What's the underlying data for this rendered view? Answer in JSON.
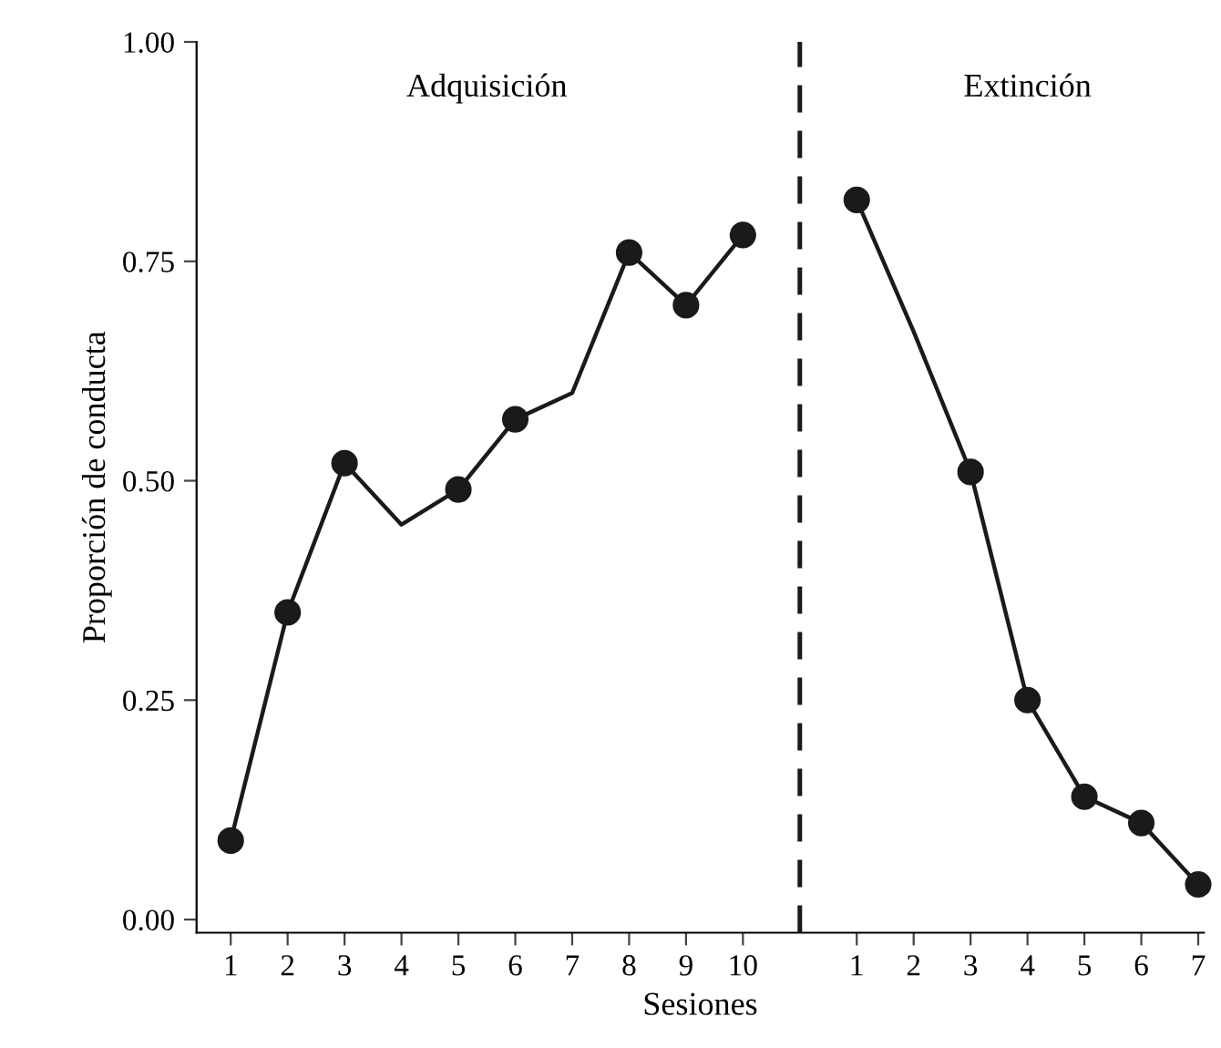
{
  "chart_data": {
    "type": "line",
    "xlabel": "Sesiones",
    "ylabel": "Proporción de conducta",
    "annotations": [
      "Adquisición",
      "Extinción"
    ],
    "categories": [
      "1",
      "2",
      "3",
      "4",
      "5",
      "6",
      "7",
      "8",
      "9",
      "10",
      null,
      "1",
      "2",
      "3",
      "4",
      "5",
      "6",
      "7"
    ],
    "ylim": [
      -0.015,
      1.0
    ],
    "yticks": [
      {
        "value": 0,
        "label": "0.00"
      },
      {
        "value": 0.25,
        "label": "0.25"
      },
      {
        "value": 0.5,
        "label": "0.50"
      },
      {
        "value": 0.75,
        "label": "0.75"
      },
      {
        "value": 1,
        "label": "1.00"
      }
    ],
    "ref_lines": [
      {
        "axis": "x",
        "value": null,
        "line_style": "dashed",
        "color": "#1a1a1a"
      }
    ],
    "series": [
      {
        "marker": "none",
        "line_style": "solid",
        "color": "#1a1a1a",
        "values": [
          0.09,
          0.35,
          0.52,
          0.45,
          0.49,
          0.57,
          0.6,
          0.76,
          0.7,
          0.78,
          null,
          null,
          null,
          null,
          null,
          null,
          null,
          null
        ]
      },
      {
        "marker": "none",
        "line_style": "solid",
        "color": "#1a1a1a",
        "values": [
          null,
          null,
          null,
          null,
          null,
          null,
          null,
          null,
          null,
          null,
          null,
          0.82,
          0.67,
          0.51,
          0.25,
          0.14,
          0.11,
          0.04
        ]
      },
      {
        "type": "scatter",
        "marker": "circle",
        "color": "#1a1a1a",
        "values": [
          0.09,
          0.35,
          0.52,
          null,
          0.49,
          0.57,
          null,
          0.76,
          0.7,
          0.78,
          null,
          0.82,
          null,
          0.51,
          0.25,
          0.14,
          0.11,
          0.04
        ]
      }
    ]
  }
}
